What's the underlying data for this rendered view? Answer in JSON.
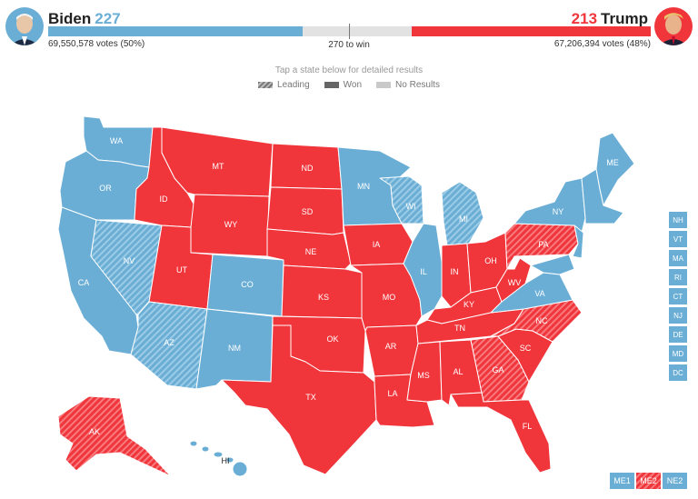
{
  "colors": {
    "dem": "#6aaed6",
    "rep": "#f0353b",
    "pending": "#e2e2e2"
  },
  "header": {
    "dem": {
      "name": "Biden",
      "ev": "227",
      "votes": "69,550,578 votes (50%)",
      "ev_share": 0.422
    },
    "rep": {
      "name": "Trump",
      "ev": "213",
      "votes": "67,206,394 votes (48%)",
      "ev_share": 0.396
    },
    "to_win": "270 to win"
  },
  "instructions": "Tap a state below for detailed results",
  "legend": {
    "leading": "Leading",
    "won": "Won",
    "no_results": "No Results"
  },
  "states": {
    "WA": "WA",
    "OR": "OR",
    "CA": "CA",
    "NV": "NV",
    "ID": "ID",
    "MT": "MT",
    "WY": "WY",
    "UT": "UT",
    "AZ": "AZ",
    "CO": "CO",
    "NM": "NM",
    "ND": "ND",
    "SD": "SD",
    "NE": "NE",
    "KS": "KS",
    "OK": "OK",
    "TX": "TX",
    "MN": "MN",
    "IA": "IA",
    "MO": "MO",
    "AR": "AR",
    "LA": "LA",
    "WI": "WI",
    "IL": "IL",
    "MI": "MI",
    "IN": "IN",
    "OH": "OH",
    "KY": "KY",
    "TN": "TN",
    "MS": "MS",
    "AL": "AL",
    "GA": "GA",
    "FL": "FL",
    "SC": "SC",
    "NC": "NC",
    "VA": "VA",
    "WV": "WV",
    "PA": "PA",
    "NY": "NY",
    "ME": "ME",
    "AK": "AK",
    "HI": "HI"
  },
  "small_states": [
    "NH",
    "VT",
    "MA",
    "RI",
    "CT",
    "NJ",
    "DE",
    "MD",
    "DC"
  ],
  "districts": {
    "me1": "ME1",
    "me2": "ME2",
    "ne2": "NE2"
  }
}
